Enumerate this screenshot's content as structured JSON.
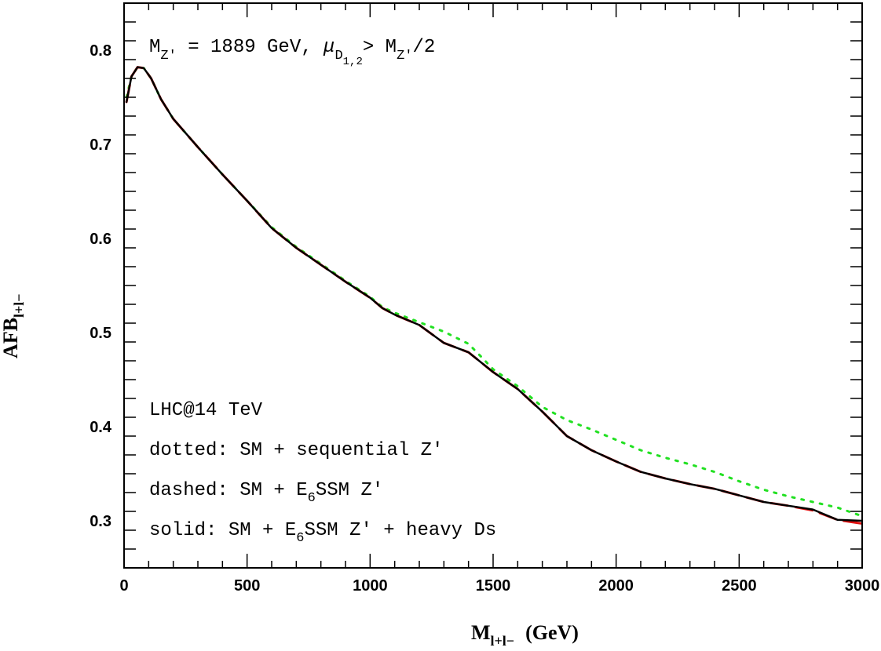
{
  "chart_data": {
    "type": "line",
    "title": "",
    "xlabel": {
      "main": "M",
      "sub": "l+l−",
      "rest": "(GeV)"
    },
    "ylabel": {
      "main": "AFB",
      "sub": "l+l−"
    },
    "xlim": [
      0,
      3000
    ],
    "ylim": [
      0.25,
      0.85
    ],
    "xticks": [
      0,
      500,
      1000,
      1500,
      2000,
      2500,
      3000
    ],
    "yticks": [
      0.3,
      0.4,
      0.5,
      0.6,
      0.7,
      0.8
    ],
    "grid": false,
    "legend": "none",
    "annotations": {
      "header": {
        "m": "M",
        "zsub": "Z′",
        "eq": " = 1889 GeV, ",
        "mu": "μ",
        "musub": "D",
        "musub2": "1,2",
        "gt": "> M",
        "zsub2": "Z′",
        "div": "/2"
      },
      "lhc": "LHC@14 TeV",
      "dotted": {
        "pre": "dotted: SM + sequential Z′"
      },
      "dashed": {
        "pre": "dashed: SM + E",
        "sub": "6",
        "post": "SSM Z′"
      },
      "solid": {
        "pre": "solid: SM + E",
        "sub": "6",
        "post": "SSM Z′ + heavy Ds"
      }
    },
    "series": [
      {
        "style": "dotted",
        "color": "#22e022",
        "points": [
          [
            10,
            0.75
          ],
          [
            30,
            0.772
          ],
          [
            55,
            0.782
          ],
          [
            80,
            0.781
          ],
          [
            110,
            0.77
          ],
          [
            150,
            0.748
          ],
          [
            200,
            0.727
          ],
          [
            300,
            0.697
          ],
          [
            400,
            0.668
          ],
          [
            500,
            0.64
          ],
          [
            600,
            0.612
          ],
          [
            700,
            0.591
          ],
          [
            800,
            0.573
          ],
          [
            900,
            0.555
          ],
          [
            1000,
            0.538
          ],
          [
            1050,
            0.527
          ],
          [
            1100,
            0.521
          ],
          [
            1200,
            0.511
          ],
          [
            1300,
            0.501
          ],
          [
            1400,
            0.488
          ],
          [
            1460,
            0.472
          ],
          [
            1500,
            0.461
          ],
          [
            1600,
            0.443
          ],
          [
            1700,
            0.421
          ],
          [
            1800,
            0.407
          ],
          [
            1900,
            0.397
          ],
          [
            2000,
            0.386
          ],
          [
            2100,
            0.375
          ],
          [
            2200,
            0.367
          ],
          [
            2300,
            0.36
          ],
          [
            2400,
            0.352
          ],
          [
            2500,
            0.342
          ],
          [
            2600,
            0.333
          ],
          [
            2700,
            0.326
          ],
          [
            2800,
            0.32
          ],
          [
            2900,
            0.314
          ],
          [
            3000,
            0.305
          ]
        ]
      },
      {
        "style": "dashed",
        "color": "#e01010",
        "points": [
          [
            10,
            0.745
          ],
          [
            30,
            0.772
          ],
          [
            55,
            0.782
          ],
          [
            80,
            0.781
          ],
          [
            110,
            0.77
          ],
          [
            150,
            0.748
          ],
          [
            200,
            0.727
          ],
          [
            300,
            0.697
          ],
          [
            400,
            0.668
          ],
          [
            500,
            0.64
          ],
          [
            600,
            0.611
          ],
          [
            700,
            0.59
          ],
          [
            800,
            0.572
          ],
          [
            900,
            0.554
          ],
          [
            1000,
            0.537
          ],
          [
            1050,
            0.526
          ],
          [
            1100,
            0.519
          ],
          [
            1200,
            0.508
          ],
          [
            1300,
            0.489
          ],
          [
            1400,
            0.479
          ],
          [
            1500,
            0.458
          ],
          [
            1600,
            0.44
          ],
          [
            1700,
            0.416
          ],
          [
            1800,
            0.39
          ],
          [
            1900,
            0.375
          ],
          [
            2000,
            0.363
          ],
          [
            2100,
            0.352
          ],
          [
            2200,
            0.345
          ],
          [
            2300,
            0.339
          ],
          [
            2400,
            0.334
          ],
          [
            2500,
            0.327
          ],
          [
            2600,
            0.32
          ],
          [
            2700,
            0.316
          ],
          [
            2800,
            0.311
          ],
          [
            2900,
            0.301
          ],
          [
            3000,
            0.297
          ]
        ]
      },
      {
        "style": "solid",
        "color": "#000000",
        "points": [
          [
            10,
            0.745
          ],
          [
            30,
            0.772
          ],
          [
            55,
            0.782
          ],
          [
            80,
            0.781
          ],
          [
            110,
            0.77
          ],
          [
            150,
            0.748
          ],
          [
            200,
            0.727
          ],
          [
            300,
            0.697
          ],
          [
            400,
            0.668
          ],
          [
            500,
            0.64
          ],
          [
            600,
            0.611
          ],
          [
            700,
            0.59
          ],
          [
            800,
            0.572
          ],
          [
            900,
            0.554
          ],
          [
            1000,
            0.537
          ],
          [
            1050,
            0.526
          ],
          [
            1100,
            0.519
          ],
          [
            1200,
            0.508
          ],
          [
            1300,
            0.489
          ],
          [
            1400,
            0.479
          ],
          [
            1500,
            0.458
          ],
          [
            1600,
            0.44
          ],
          [
            1700,
            0.416
          ],
          [
            1800,
            0.39
          ],
          [
            1900,
            0.375
          ],
          [
            2000,
            0.363
          ],
          [
            2100,
            0.352
          ],
          [
            2200,
            0.345
          ],
          [
            2300,
            0.339
          ],
          [
            2400,
            0.334
          ],
          [
            2500,
            0.327
          ],
          [
            2600,
            0.32
          ],
          [
            2700,
            0.316
          ],
          [
            2800,
            0.312
          ],
          [
            2900,
            0.301
          ],
          [
            3000,
            0.3
          ]
        ]
      }
    ]
  }
}
